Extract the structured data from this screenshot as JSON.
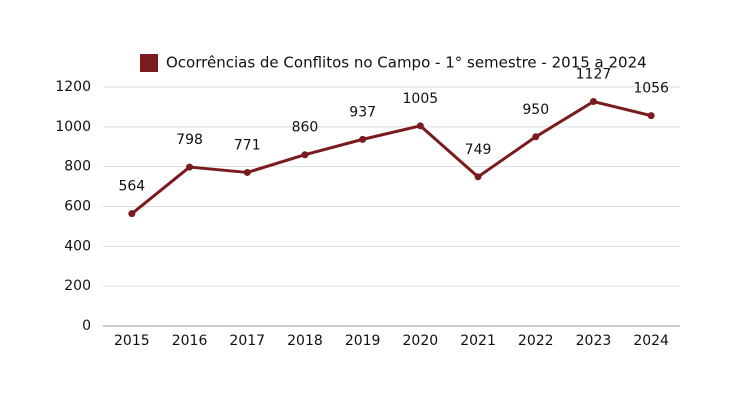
{
  "chart_data": {
    "type": "line",
    "categories": [
      "2015",
      "2016",
      "2017",
      "2018",
      "2019",
      "2020",
      "2021",
      "2022",
      "2023",
      "2024"
    ],
    "series": [
      {
        "name": "Ocorrências de Conflitos no Campo - 1° semestre - 2015 a 2024",
        "color": "#7a1b1d",
        "values": [
          564,
          798,
          771,
          860,
          937,
          1005,
          749,
          950,
          1127,
          1056
        ]
      }
    ],
    "ylim": [
      0,
      1200
    ],
    "yticks": [
      0,
      200,
      400,
      600,
      800,
      1000,
      1200
    ],
    "grid": true,
    "legend": "top",
    "data_labels": true
  }
}
